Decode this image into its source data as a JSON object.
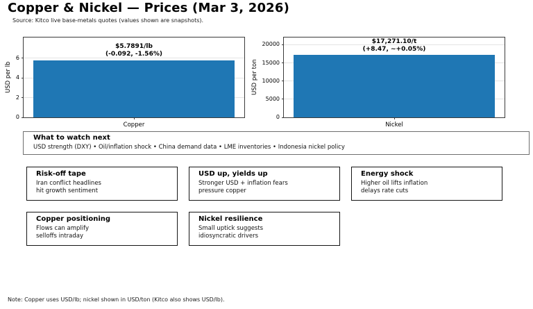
{
  "header": {
    "title": "Copper & Nickel — Prices (Mar 3, 2026)",
    "subtitle": "Source: Kitco live base-metals quotes (values shown are snapshots)."
  },
  "chart_data": [
    {
      "type": "bar",
      "categories": [
        "Copper"
      ],
      "values": [
        5.7891
      ],
      "title": "",
      "xlabel": "",
      "ylabel": "USD per lb",
      "ylim": [
        0,
        8.1
      ],
      "yticks": [
        0,
        2,
        4,
        6
      ],
      "ytick_labels": [
        "0",
        "2",
        "4",
        "6"
      ],
      "grid": true,
      "bar_color": "#1f77b4",
      "annotation": {
        "line1": "$5.7891/lb",
        "line2": "(-0.092, -1.56%)"
      }
    },
    {
      "type": "bar",
      "categories": [
        "Nickel"
      ],
      "values": [
        17271.1
      ],
      "title": "",
      "xlabel": "",
      "ylabel": "USD per ton",
      "ylim": [
        0,
        22000
      ],
      "yticks": [
        0,
        5000,
        10000,
        15000,
        20000
      ],
      "ytick_labels": [
        "0",
        "5000",
        "10000",
        "15000",
        "20000"
      ],
      "grid": true,
      "bar_color": "#1f77b4",
      "annotation": {
        "line1": "$17,271.10/t",
        "line2": "(+8.47, ~+0.05%)"
      }
    }
  ],
  "watch_box": {
    "title": "What to watch next",
    "items_line": "USD strength (DXY) • Oil/inflation shock • China demand data • LME inventories • Indonesia nickel policy"
  },
  "cards": [
    {
      "title": "Risk-off tape",
      "line1": "Iran conflict headlines",
      "line2": "hit growth sentiment"
    },
    {
      "title": "USD up, yields up",
      "line1": "Stronger USD + inflation fears",
      "line2": "pressure copper"
    },
    {
      "title": "Energy shock",
      "line1": "Higher oil lifts inflation",
      "line2": "delays rate cuts"
    },
    {
      "title": "Copper positioning",
      "line1": "Flows can amplify",
      "line2": "selloffs intraday"
    },
    {
      "title": "Nickel resilience",
      "line1": "Small uptick suggests",
      "line2": "idiosyncratic drivers"
    }
  ],
  "note": "Note: Copper uses USD/lb; nickel shown in USD/ton (Kitco also shows USD/lb).",
  "colors": {
    "bar": "#1f77b4",
    "grid": "#e3e3e3",
    "spine": "#3a3a3a",
    "card_border": "#141414",
    "watch_border": "#6e6e6e"
  }
}
